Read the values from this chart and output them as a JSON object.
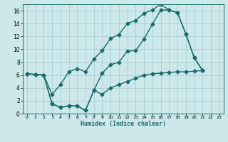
{
  "xlabel": "Humidex (Indice chaleur)",
  "bg_color": "#cce8eb",
  "grid_color": "#aacdd2",
  "line_color": "#1a6b6b",
  "xlim": [
    -0.5,
    23.5
  ],
  "ylim": [
    0,
    17
  ],
  "xticks": [
    0,
    1,
    2,
    3,
    4,
    5,
    6,
    7,
    8,
    9,
    10,
    11,
    12,
    13,
    14,
    15,
    16,
    17,
    18,
    19,
    20,
    21,
    22,
    23
  ],
  "yticks": [
    0,
    2,
    4,
    6,
    8,
    10,
    12,
    14,
    16
  ],
  "line1_x": [
    0,
    1,
    2,
    3,
    4,
    5,
    6,
    7,
    8,
    9,
    10,
    11,
    12,
    13,
    14,
    15,
    16,
    17,
    18,
    19,
    20,
    21
  ],
  "line1_y": [
    6.2,
    6.1,
    6.0,
    3.0,
    4.5,
    6.5,
    7.0,
    6.5,
    8.5,
    9.8,
    11.7,
    12.3,
    14.0,
    14.5,
    15.6,
    16.1,
    17.0,
    16.1,
    15.7,
    12.4,
    8.7,
    6.7
  ],
  "line2_x": [
    0,
    1,
    2,
    3,
    4,
    5,
    6,
    7,
    8,
    9,
    10,
    11,
    12,
    13,
    14,
    15,
    16,
    17,
    18,
    19,
    20,
    21
  ],
  "line2_y": [
    6.2,
    6.1,
    6.0,
    1.5,
    1.0,
    1.2,
    1.2,
    0.5,
    3.6,
    6.3,
    7.6,
    8.0,
    9.7,
    9.8,
    11.6,
    13.9,
    16.1,
    16.1,
    15.7,
    12.4,
    8.7,
    6.7
  ],
  "line3_x": [
    0,
    1,
    2,
    3,
    4,
    5,
    6,
    7,
    8,
    9,
    10,
    11,
    12,
    13,
    14,
    15,
    16,
    17,
    18,
    19,
    20,
    21
  ],
  "line3_y": [
    6.2,
    6.1,
    6.0,
    1.5,
    1.0,
    1.2,
    1.2,
    0.5,
    3.6,
    3.0,
    4.0,
    4.5,
    5.0,
    5.5,
    6.0,
    6.2,
    6.3,
    6.4,
    6.5,
    6.5,
    6.6,
    6.7
  ],
  "marker": "D",
  "markersize": 2.5,
  "linewidth": 1.0
}
